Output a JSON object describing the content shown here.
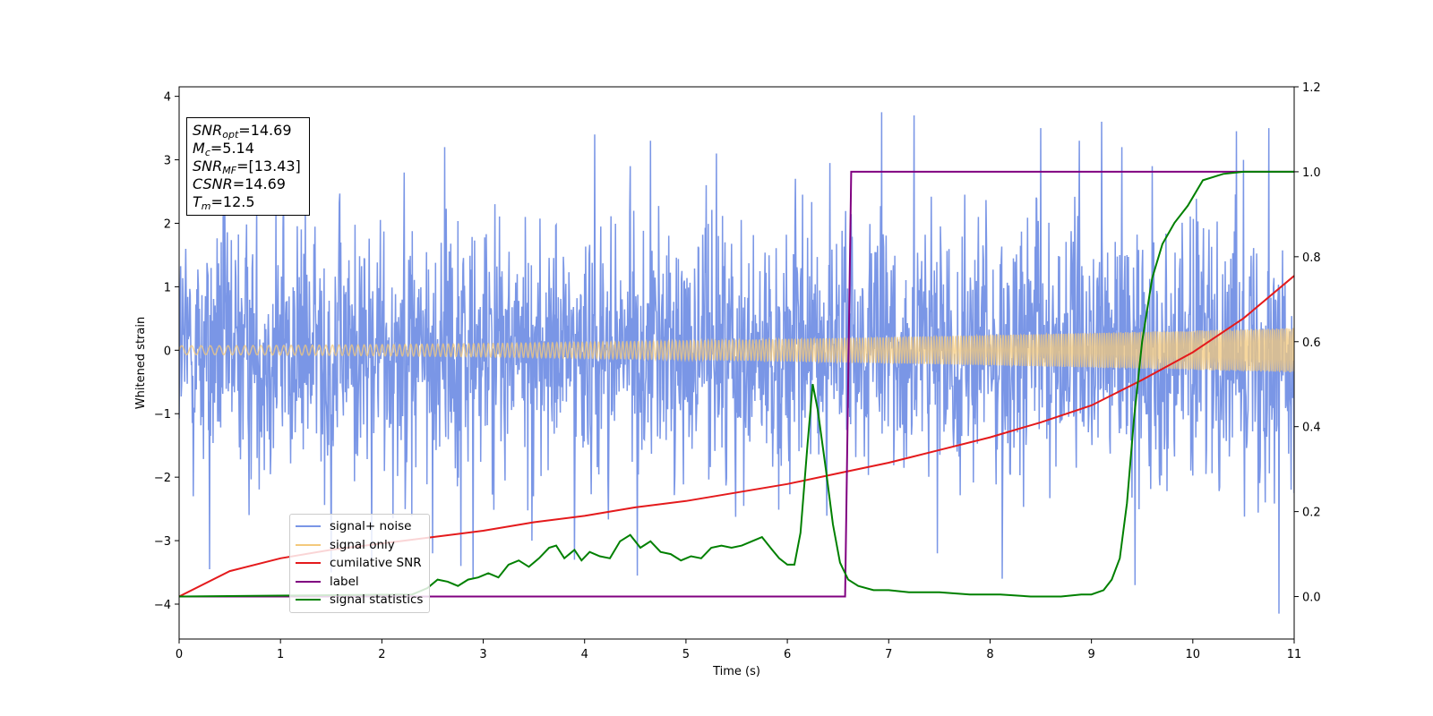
{
  "chart_data": {
    "type": "line",
    "xlabel": "Time (s)",
    "ylabel": "Whitened strain",
    "xlim": [
      0,
      11
    ],
    "ylim": [
      -4.55,
      4.15
    ],
    "y2lim": [
      -0.1,
      1.2
    ],
    "x_ticks": [
      "0",
      "1",
      "2",
      "3",
      "4",
      "5",
      "6",
      "7",
      "8",
      "9",
      "10",
      "11"
    ],
    "y_ticks": [
      "−4",
      "−3",
      "−2",
      "−1",
      "0",
      "1",
      "2",
      "3",
      "4"
    ],
    "y2_ticks": [
      "0.0",
      "0.2",
      "0.4",
      "0.6",
      "0.8",
      "1.0",
      "1.2"
    ],
    "grid": false,
    "legend_position": "lower-left",
    "annotation": {
      "snr_opt": {
        "name": "SNR",
        "sub": "opt",
        "value": "=14.69"
      },
      "mc": {
        "name": "M",
        "sub": "c",
        "value": "=5.14"
      },
      "snr_mf": {
        "name": "SNR",
        "sub": "MF",
        "value": "=[13.43]"
      },
      "csnr": {
        "name": "CSNR",
        "value": "=14.69"
      },
      "tm": {
        "name": "T",
        "sub": "m",
        "value": "=12.5"
      }
    },
    "series": [
      {
        "name": "signal+ noise",
        "color": "#7a96e6",
        "axis": "left",
        "noise_std": 1.0,
        "peaks": [
          [
            0.3,
            -3.45
          ],
          [
            0.45,
            2.6
          ],
          [
            1.03,
            2.7
          ],
          [
            1.5,
            -3.5
          ],
          [
            1.9,
            -3.3
          ],
          [
            2.22,
            2.8
          ],
          [
            2.5,
            -3.2
          ],
          [
            2.62,
            3.2
          ],
          [
            2.78,
            -3.4
          ],
          [
            2.9,
            -3.6
          ],
          [
            3.48,
            -3.0
          ],
          [
            3.9,
            -3.3
          ],
          [
            4.1,
            3.4
          ],
          [
            4.45,
            2.9
          ],
          [
            4.52,
            -3.55
          ],
          [
            4.65,
            3.3
          ],
          [
            5.2,
            2.6
          ],
          [
            5.3,
            3.1
          ],
          [
            6.08,
            2.7
          ],
          [
            6.42,
            2.95
          ],
          [
            6.93,
            3.75
          ],
          [
            7.25,
            3.7
          ],
          [
            7.48,
            -3.2
          ],
          [
            8.12,
            -3.6
          ],
          [
            8.5,
            3.5
          ],
          [
            8.88,
            3.3
          ],
          [
            9.1,
            3.6
          ],
          [
            9.3,
            3.2
          ],
          [
            9.43,
            -3.7
          ],
          [
            9.6,
            2.9
          ],
          [
            10.43,
            3.45
          ],
          [
            10.5,
            3.0
          ],
          [
            10.85,
            -4.15
          ],
          [
            10.75,
            3.5
          ]
        ]
      },
      {
        "name": "signal only",
        "color": "#f4c97c",
        "axis": "left",
        "amplitude_start": 0.07,
        "amplitude_end": 0.35
      },
      {
        "name": "cumilative SNR",
        "color": "#e41a1c",
        "axis": "right",
        "x": [
          0,
          0.5,
          1,
          1.5,
          2,
          2.5,
          3,
          3.5,
          4,
          4.5,
          5,
          5.5,
          6,
          6.5,
          7,
          7.5,
          8,
          8.5,
          9,
          9.5,
          10,
          10.5,
          11
        ],
        "values": [
          0.0,
          0.06,
          0.09,
          0.11,
          0.125,
          0.14,
          0.155,
          0.175,
          0.19,
          0.21,
          0.225,
          0.245,
          0.265,
          0.29,
          0.315,
          0.345,
          0.375,
          0.41,
          0.45,
          0.51,
          0.575,
          0.655,
          0.755
        ]
      },
      {
        "name": "label",
        "color": "#800080",
        "axis": "right",
        "x": [
          0,
          6.57,
          6.63,
          11
        ],
        "values": [
          0.0,
          0.0,
          1.0,
          1.0
        ]
      },
      {
        "name": "signal statistics",
        "color": "#008000",
        "axis": "right",
        "x": [
          0,
          2.3,
          2.45,
          2.55,
          2.65,
          2.75,
          2.85,
          2.95,
          3.05,
          3.15,
          3.25,
          3.35,
          3.45,
          3.55,
          3.65,
          3.72,
          3.8,
          3.9,
          3.97,
          4.05,
          4.15,
          4.25,
          4.35,
          4.45,
          4.55,
          4.65,
          4.75,
          4.85,
          4.95,
          5.05,
          5.15,
          5.25,
          5.35,
          5.45,
          5.55,
          5.65,
          5.75,
          5.85,
          5.92,
          6.0,
          6.07,
          6.13,
          6.2,
          6.25,
          6.3,
          6.38,
          6.45,
          6.52,
          6.6,
          6.7,
          6.85,
          7.0,
          7.2,
          7.5,
          7.8,
          8.1,
          8.4,
          8.7,
          8.9,
          9.0,
          9.12,
          9.2,
          9.28,
          9.35,
          9.42,
          9.5,
          9.6,
          9.7,
          9.82,
          9.95,
          10.1,
          10.3,
          10.5,
          10.7,
          10.9,
          11
        ],
        "values": [
          0.0,
          0.005,
          0.02,
          0.04,
          0.035,
          0.025,
          0.04,
          0.045,
          0.055,
          0.045,
          0.075,
          0.085,
          0.07,
          0.09,
          0.115,
          0.12,
          0.09,
          0.11,
          0.085,
          0.105,
          0.095,
          0.09,
          0.13,
          0.145,
          0.115,
          0.13,
          0.105,
          0.1,
          0.085,
          0.095,
          0.09,
          0.115,
          0.12,
          0.115,
          0.12,
          0.13,
          0.14,
          0.11,
          0.09,
          0.075,
          0.075,
          0.15,
          0.36,
          0.5,
          0.44,
          0.3,
          0.17,
          0.08,
          0.04,
          0.025,
          0.015,
          0.015,
          0.01,
          0.01,
          0.005,
          0.005,
          0.0,
          0.0,
          0.005,
          0.005,
          0.015,
          0.04,
          0.09,
          0.22,
          0.42,
          0.6,
          0.75,
          0.83,
          0.88,
          0.92,
          0.98,
          0.995,
          1.0,
          1.0,
          1.0,
          1.0
        ]
      }
    ]
  }
}
